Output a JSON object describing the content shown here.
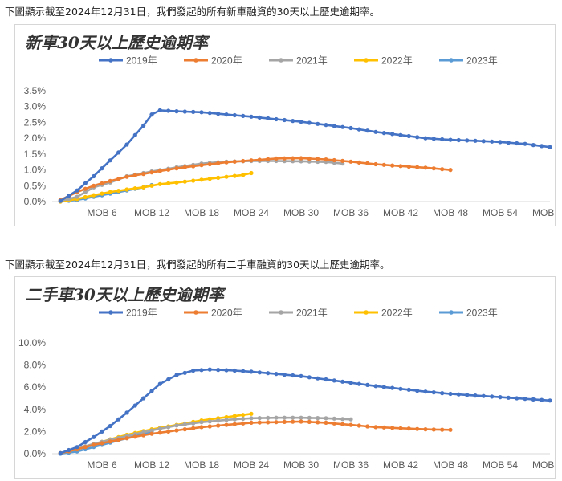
{
  "captions": [
    "下圖顯示截至2024年12月31日，我們發起的所有新車融資的30天以上歷史逾期率。",
    "下圖顯示截至2024年12月31日，我們發起的所有二手車融資的30天以上歷史逾期率。"
  ],
  "colors": {
    "2019年": "#4472c4",
    "2020年": "#ed7d31",
    "2021年": "#a5a5a5",
    "2022年": "#ffc000",
    "2023年": "#5b9bd5"
  },
  "chart_data": [
    {
      "type": "line",
      "title": "新車30天以上歷史逾期率",
      "legend_position": "top",
      "grid": false,
      "xlim": [
        0,
        60
      ],
      "ylim": [
        0,
        3.5
      ],
      "x_ticks": [
        6,
        12,
        18,
        24,
        30,
        36,
        42,
        48,
        54,
        60
      ],
      "x_tick_labels": [
        "MOB 6",
        "MOB 12",
        "MOB 18",
        "MOB 24",
        "MOB 30",
        "MOB 36",
        "MOB 42",
        "MOB 48",
        "MOB 54",
        "MOB 60"
      ],
      "y_ticks": [
        0,
        0.5,
        1.0,
        1.5,
        2.0,
        2.5,
        3.0,
        3.5
      ],
      "y_tick_labels": [
        "0.0%",
        "0.5%",
        "1.0%",
        "1.5%",
        "2.0%",
        "2.5%",
        "3.0%",
        "3.5%"
      ],
      "series": [
        {
          "name": "2019年",
          "points": [
            [
              1,
              0.02
            ],
            [
              3,
              0.35
            ],
            [
              5,
              0.8
            ],
            [
              7,
              1.3
            ],
            [
              9,
              1.8
            ],
            [
              11,
              2.4
            ],
            [
              12,
              2.75
            ],
            [
              13,
              2.88
            ],
            [
              15,
              2.85
            ],
            [
              18,
              2.82
            ],
            [
              21,
              2.75
            ],
            [
              24,
              2.68
            ],
            [
              27,
              2.6
            ],
            [
              30,
              2.52
            ],
            [
              33,
              2.42
            ],
            [
              36,
              2.32
            ],
            [
              39,
              2.2
            ],
            [
              42,
              2.1
            ],
            [
              45,
              2.0
            ],
            [
              48,
              1.95
            ],
            [
              51,
              1.92
            ],
            [
              54,
              1.88
            ],
            [
              57,
              1.82
            ],
            [
              60,
              1.72
            ]
          ]
        },
        {
          "name": "2020年",
          "points": [
            [
              1,
              0.05
            ],
            [
              3,
              0.3
            ],
            [
              5,
              0.5
            ],
            [
              7,
              0.65
            ],
            [
              9,
              0.78
            ],
            [
              12,
              0.92
            ],
            [
              15,
              1.05
            ],
            [
              18,
              1.15
            ],
            [
              21,
              1.24
            ],
            [
              24,
              1.3
            ],
            [
              27,
              1.36
            ],
            [
              30,
              1.37
            ],
            [
              33,
              1.33
            ],
            [
              36,
              1.26
            ],
            [
              39,
              1.18
            ],
            [
              42,
              1.12
            ],
            [
              45,
              1.07
            ],
            [
              48,
              1.0
            ]
          ]
        },
        {
          "name": "2021年",
          "points": [
            [
              1,
              0.02
            ],
            [
              3,
              0.15
            ],
            [
              5,
              0.45
            ],
            [
              7,
              0.6
            ],
            [
              9,
              0.8
            ],
            [
              12,
              0.95
            ],
            [
              15,
              1.08
            ],
            [
              18,
              1.2
            ],
            [
              21,
              1.26
            ],
            [
              24,
              1.28
            ],
            [
              27,
              1.28
            ],
            [
              30,
              1.27
            ],
            [
              33,
              1.25
            ],
            [
              35,
              1.2
            ]
          ]
        },
        {
          "name": "2022年",
          "points": [
            [
              1,
              0.0
            ],
            [
              3,
              0.08
            ],
            [
              5,
              0.2
            ],
            [
              7,
              0.3
            ],
            [
              9,
              0.38
            ],
            [
              11,
              0.45
            ],
            [
              13,
              0.55
            ],
            [
              15,
              0.6
            ],
            [
              17,
              0.66
            ],
            [
              19,
              0.72
            ],
            [
              21,
              0.78
            ],
            [
              23,
              0.84
            ],
            [
              24,
              0.9
            ]
          ]
        },
        {
          "name": "2023年",
          "points": [
            [
              1,
              0.0
            ],
            [
              3,
              0.05
            ],
            [
              5,
              0.15
            ],
            [
              7,
              0.25
            ],
            [
              9,
              0.35
            ],
            [
              11,
              0.45
            ],
            [
              12,
              0.52
            ]
          ]
        }
      ]
    },
    {
      "type": "line",
      "title": "二手車30天以上歷史逾期率",
      "legend_position": "top",
      "grid": false,
      "xlim": [
        0,
        60
      ],
      "ylim": [
        0,
        10
      ],
      "x_ticks": [
        6,
        12,
        18,
        24,
        30,
        36,
        42,
        48,
        54,
        60
      ],
      "x_tick_labels": [
        "MOB 6",
        "MOB 12",
        "MOB 18",
        "MOB 24",
        "MOB 30",
        "MOB 36",
        "MOB 42",
        "MOB 48",
        "MOB 54",
        "MOB 60"
      ],
      "y_ticks": [
        0,
        2,
        4,
        6,
        8,
        10
      ],
      "y_tick_labels": [
        "0.0%",
        "2.0%",
        "4.0%",
        "6.0%",
        "8.0%",
        "10.0%"
      ],
      "series": [
        {
          "name": "2019年",
          "points": [
            [
              1,
              0.05
            ],
            [
              3,
              0.6
            ],
            [
              5,
              1.5
            ],
            [
              7,
              2.5
            ],
            [
              9,
              3.7
            ],
            [
              11,
              5.0
            ],
            [
              13,
              6.3
            ],
            [
              15,
              7.1
            ],
            [
              17,
              7.5
            ],
            [
              19,
              7.6
            ],
            [
              22,
              7.5
            ],
            [
              24,
              7.4
            ],
            [
              27,
              7.2
            ],
            [
              30,
              7.0
            ],
            [
              33,
              6.7
            ],
            [
              36,
              6.4
            ],
            [
              39,
              6.1
            ],
            [
              42,
              5.85
            ],
            [
              45,
              5.6
            ],
            [
              48,
              5.4
            ],
            [
              51,
              5.25
            ],
            [
              54,
              5.1
            ],
            [
              57,
              4.95
            ],
            [
              60,
              4.8
            ]
          ]
        },
        {
          "name": "2020年",
          "points": [
            [
              1,
              0.05
            ],
            [
              3,
              0.4
            ],
            [
              5,
              0.8
            ],
            [
              7,
              1.1
            ],
            [
              9,
              1.4
            ],
            [
              12,
              1.8
            ],
            [
              15,
              2.1
            ],
            [
              18,
              2.4
            ],
            [
              21,
              2.6
            ],
            [
              24,
              2.8
            ],
            [
              27,
              2.85
            ],
            [
              30,
              2.9
            ],
            [
              33,
              2.8
            ],
            [
              36,
              2.6
            ],
            [
              39,
              2.4
            ],
            [
              42,
              2.3
            ],
            [
              45,
              2.2
            ],
            [
              48,
              2.15
            ]
          ]
        },
        {
          "name": "2021年",
          "points": [
            [
              1,
              0.05
            ],
            [
              3,
              0.45
            ],
            [
              5,
              0.9
            ],
            [
              7,
              1.25
            ],
            [
              9,
              1.6
            ],
            [
              12,
              2.1
            ],
            [
              15,
              2.55
            ],
            [
              18,
              2.85
            ],
            [
              21,
              3.05
            ],
            [
              24,
              3.2
            ],
            [
              27,
              3.25
            ],
            [
              30,
              3.25
            ],
            [
              33,
              3.2
            ],
            [
              36,
              3.1
            ]
          ]
        },
        {
          "name": "2022年",
          "points": [
            [
              1,
              0.05
            ],
            [
              3,
              0.4
            ],
            [
              5,
              0.85
            ],
            [
              7,
              1.3
            ],
            [
              9,
              1.7
            ],
            [
              12,
              2.2
            ],
            [
              15,
              2.6
            ],
            [
              18,
              3.0
            ],
            [
              21,
              3.3
            ],
            [
              24,
              3.6
            ]
          ]
        },
        {
          "name": "2023年",
          "points": [
            [
              1,
              0.0
            ],
            [
              3,
              0.2
            ],
            [
              5,
              0.6
            ],
            [
              7,
              1.0
            ],
            [
              9,
              1.4
            ],
            [
              11,
              1.8
            ],
            [
              12,
              2.0
            ]
          ]
        }
      ]
    }
  ]
}
